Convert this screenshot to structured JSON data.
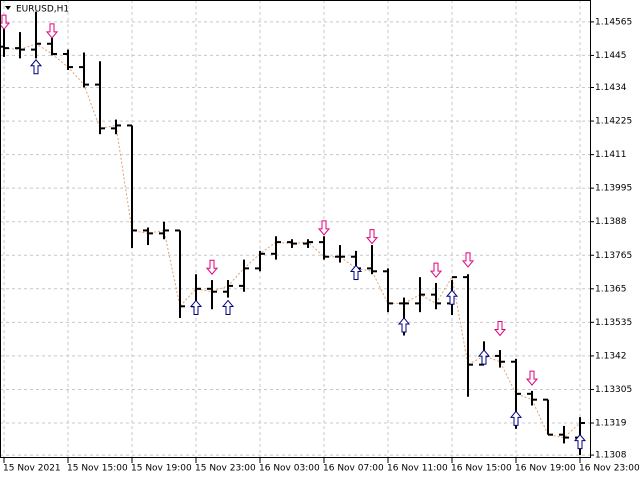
{
  "chart_data": {
    "type": "ohlc",
    "title": "EURUSD,H1",
    "categories": [
      "15 Nov 2021",
      null,
      null,
      null,
      "15 Nov 15:00",
      null,
      null,
      null,
      "15 Nov 19:00",
      null,
      null,
      null,
      "15 Nov 23:00",
      null,
      null,
      null,
      "16 Nov 03:00",
      null,
      null,
      null,
      "16 Nov 07:00",
      null,
      null,
      null,
      "16 Nov 11:00",
      null,
      null,
      null,
      "16 Nov 15:00",
      null,
      null,
      null,
      "16 Nov 19:00",
      null,
      null,
      null,
      "16 Nov 23:00"
    ],
    "open": [
      1.1448,
      1.14475,
      1.1447,
      1.1449,
      1.14455,
      1.1441,
      1.1435,
      1.142,
      1.1421,
      1.1385,
      1.1384,
      1.1385,
      1.1359,
      1.1365,
      1.1364,
      1.1366,
      1.1372,
      1.1377,
      1.1381,
      1.13805,
      1.1381,
      1.1376,
      1.1376,
      1.1372,
      1.1371,
      1.136,
      1.136,
      1.1363,
      1.136,
      1.1369,
      1.1339,
      1.1342,
      1.134,
      1.1329,
      1.1327,
      1.1315,
      1.1314
    ],
    "high": [
      1.1457,
      1.1453,
      1.146,
      1.1451,
      1.1447,
      1.1446,
      1.1443,
      1.1423,
      1.1421,
      1.1386,
      1.1388,
      1.1385,
      1.137,
      1.1368,
      1.1368,
      1.1375,
      1.1378,
      1.1383,
      1.1382,
      1.1382,
      1.1383,
      1.138,
      1.1378,
      1.138,
      1.1372,
      1.1362,
      1.1369,
      1.1367,
      1.1368,
      1.137,
      1.1347,
      1.1344,
      1.1341,
      1.133,
      1.1327,
      1.1318,
      1.1321
    ],
    "low": [
      1.14445,
      1.1444,
      1.1444,
      1.1445,
      1.144,
      1.1434,
      1.1418,
      1.1418,
      1.1379,
      1.138,
      1.1382,
      1.1355,
      1.1358,
      1.1358,
      1.1362,
      1.1364,
      1.1371,
      1.1375,
      1.1379,
      1.1379,
      1.1375,
      1.1374,
      1.1368,
      1.137,
      1.1357,
      1.1349,
      1.1357,
      1.1358,
      1.1356,
      1.1328,
      1.1339,
      1.1338,
      1.1317,
      1.1325,
      1.1315,
      1.1312,
      1.1308
    ],
    "close": [
      1.14475,
      1.1447,
      1.1449,
      1.14455,
      1.1441,
      1.1435,
      1.142,
      1.1421,
      1.1385,
      1.1384,
      1.1385,
      1.1359,
      1.1365,
      1.1364,
      1.1366,
      1.1372,
      1.1377,
      1.1381,
      1.13805,
      1.1381,
      1.1376,
      1.1376,
      1.1372,
      1.1371,
      1.136,
      1.136,
      1.1363,
      1.136,
      1.1369,
      1.1339,
      1.1342,
      1.134,
      1.1329,
      1.1327,
      1.1315,
      1.1314,
      1.1319
    ],
    "up_arrows": [
      null,
      null,
      1.14435,
      null,
      null,
      null,
      null,
      null,
      null,
      null,
      null,
      null,
      1.1361,
      null,
      1.1361,
      null,
      null,
      null,
      null,
      null,
      null,
      null,
      1.1373,
      null,
      null,
      1.1355,
      null,
      null,
      1.13645,
      null,
      1.1344,
      null,
      1.1323,
      null,
      null,
      null,
      1.1315
    ],
    "down_arrows": [
      1.1454,
      null,
      null,
      1.1451,
      null,
      null,
      null,
      null,
      null,
      null,
      null,
      null,
      null,
      1.137,
      null,
      null,
      null,
      null,
      null,
      null,
      1.13835,
      null,
      null,
      1.13805,
      null,
      null,
      null,
      1.1369,
      null,
      1.13725,
      null,
      1.1349,
      null,
      1.1332,
      null,
      null,
      null
    ],
    "bar_color": "#000000",
    "up_color": "#000080",
    "down_color": "#e0007f",
    "line_color": "#e0a070",
    "ylim": [
      1.1307,
      1.1464
    ],
    "yticks": [
      1.14565,
      1.1445,
      1.1434,
      1.14225,
      1.1411,
      1.13995,
      1.1388,
      1.13765,
      1.1365,
      1.13535,
      1.1342,
      1.13305,
      1.1319,
      1.1308
    ],
    "grid": true
  }
}
